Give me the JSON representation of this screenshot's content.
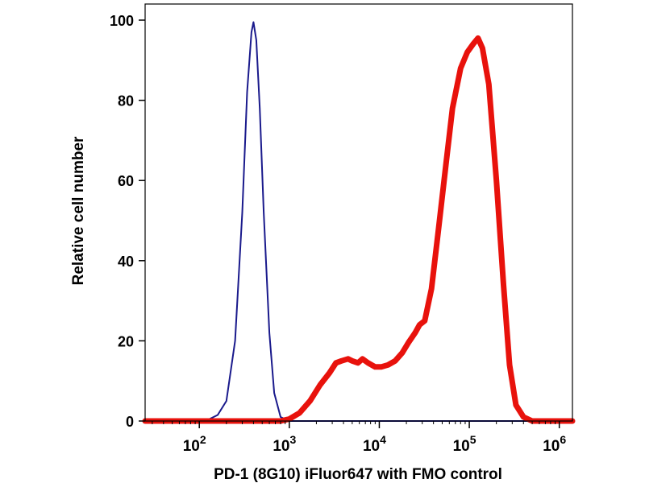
{
  "chart_data": {
    "type": "line",
    "xlabel": "PD-1 (8G10) iFluor647 with FMO control",
    "ylabel": "Relative cell number",
    "x_scale": "log",
    "xlim": [
      25,
      1400000
    ],
    "ylim": [
      0,
      100
    ],
    "x_ticks": [
      {
        "value": 100,
        "base": "10",
        "exp": "2"
      },
      {
        "value": 1000,
        "base": "10",
        "exp": "3"
      },
      {
        "value": 10000,
        "base": "10",
        "exp": "4"
      },
      {
        "value": 100000,
        "base": "10",
        "exp": "5"
      },
      {
        "value": 1000000,
        "base": "10",
        "exp": "6"
      }
    ],
    "y_ticks": [
      "0",
      "20",
      "40",
      "60",
      "80",
      "100"
    ],
    "grid": false,
    "legend": "none",
    "series": [
      {
        "color": "#1a1a8c",
        "x": [
          25,
          100,
          130,
          160,
          200,
          250,
          300,
          340,
          380,
          400,
          430,
          470,
          520,
          600,
          680,
          800,
          1000,
          1400000
        ],
        "y": [
          0,
          0,
          0.5,
          1.5,
          5,
          20,
          52,
          82,
          97,
          99.5,
          95,
          78,
          52,
          22,
          7,
          1,
          0,
          0
        ]
      },
      {
        "color": "#e8120c",
        "x": [
          25,
          500,
          800,
          1000,
          1300,
          1700,
          2200,
          2800,
          3300,
          3800,
          4500,
          5000,
          5800,
          6500,
          7500,
          9000,
          10500,
          12500,
          15000,
          18000,
          21000,
          25000,
          28000,
          32000,
          38000,
          45000,
          55000,
          65000,
          80000,
          95000,
          110000,
          125000,
          140000,
          165000,
          200000,
          240000,
          280000,
          330000,
          400000,
          500000,
          700000,
          1400000
        ],
        "y": [
          0,
          0,
          0,
          0.5,
          2,
          5,
          9,
          12,
          14.5,
          15,
          15.5,
          15,
          14.5,
          15.5,
          14.5,
          13.5,
          13.5,
          14,
          15,
          17,
          19.5,
          22,
          24,
          25,
          33,
          47,
          64,
          78,
          88,
          92,
          94,
          95.5,
          93,
          84,
          60,
          34,
          14,
          4,
          1,
          0,
          0,
          0
        ]
      }
    ]
  }
}
